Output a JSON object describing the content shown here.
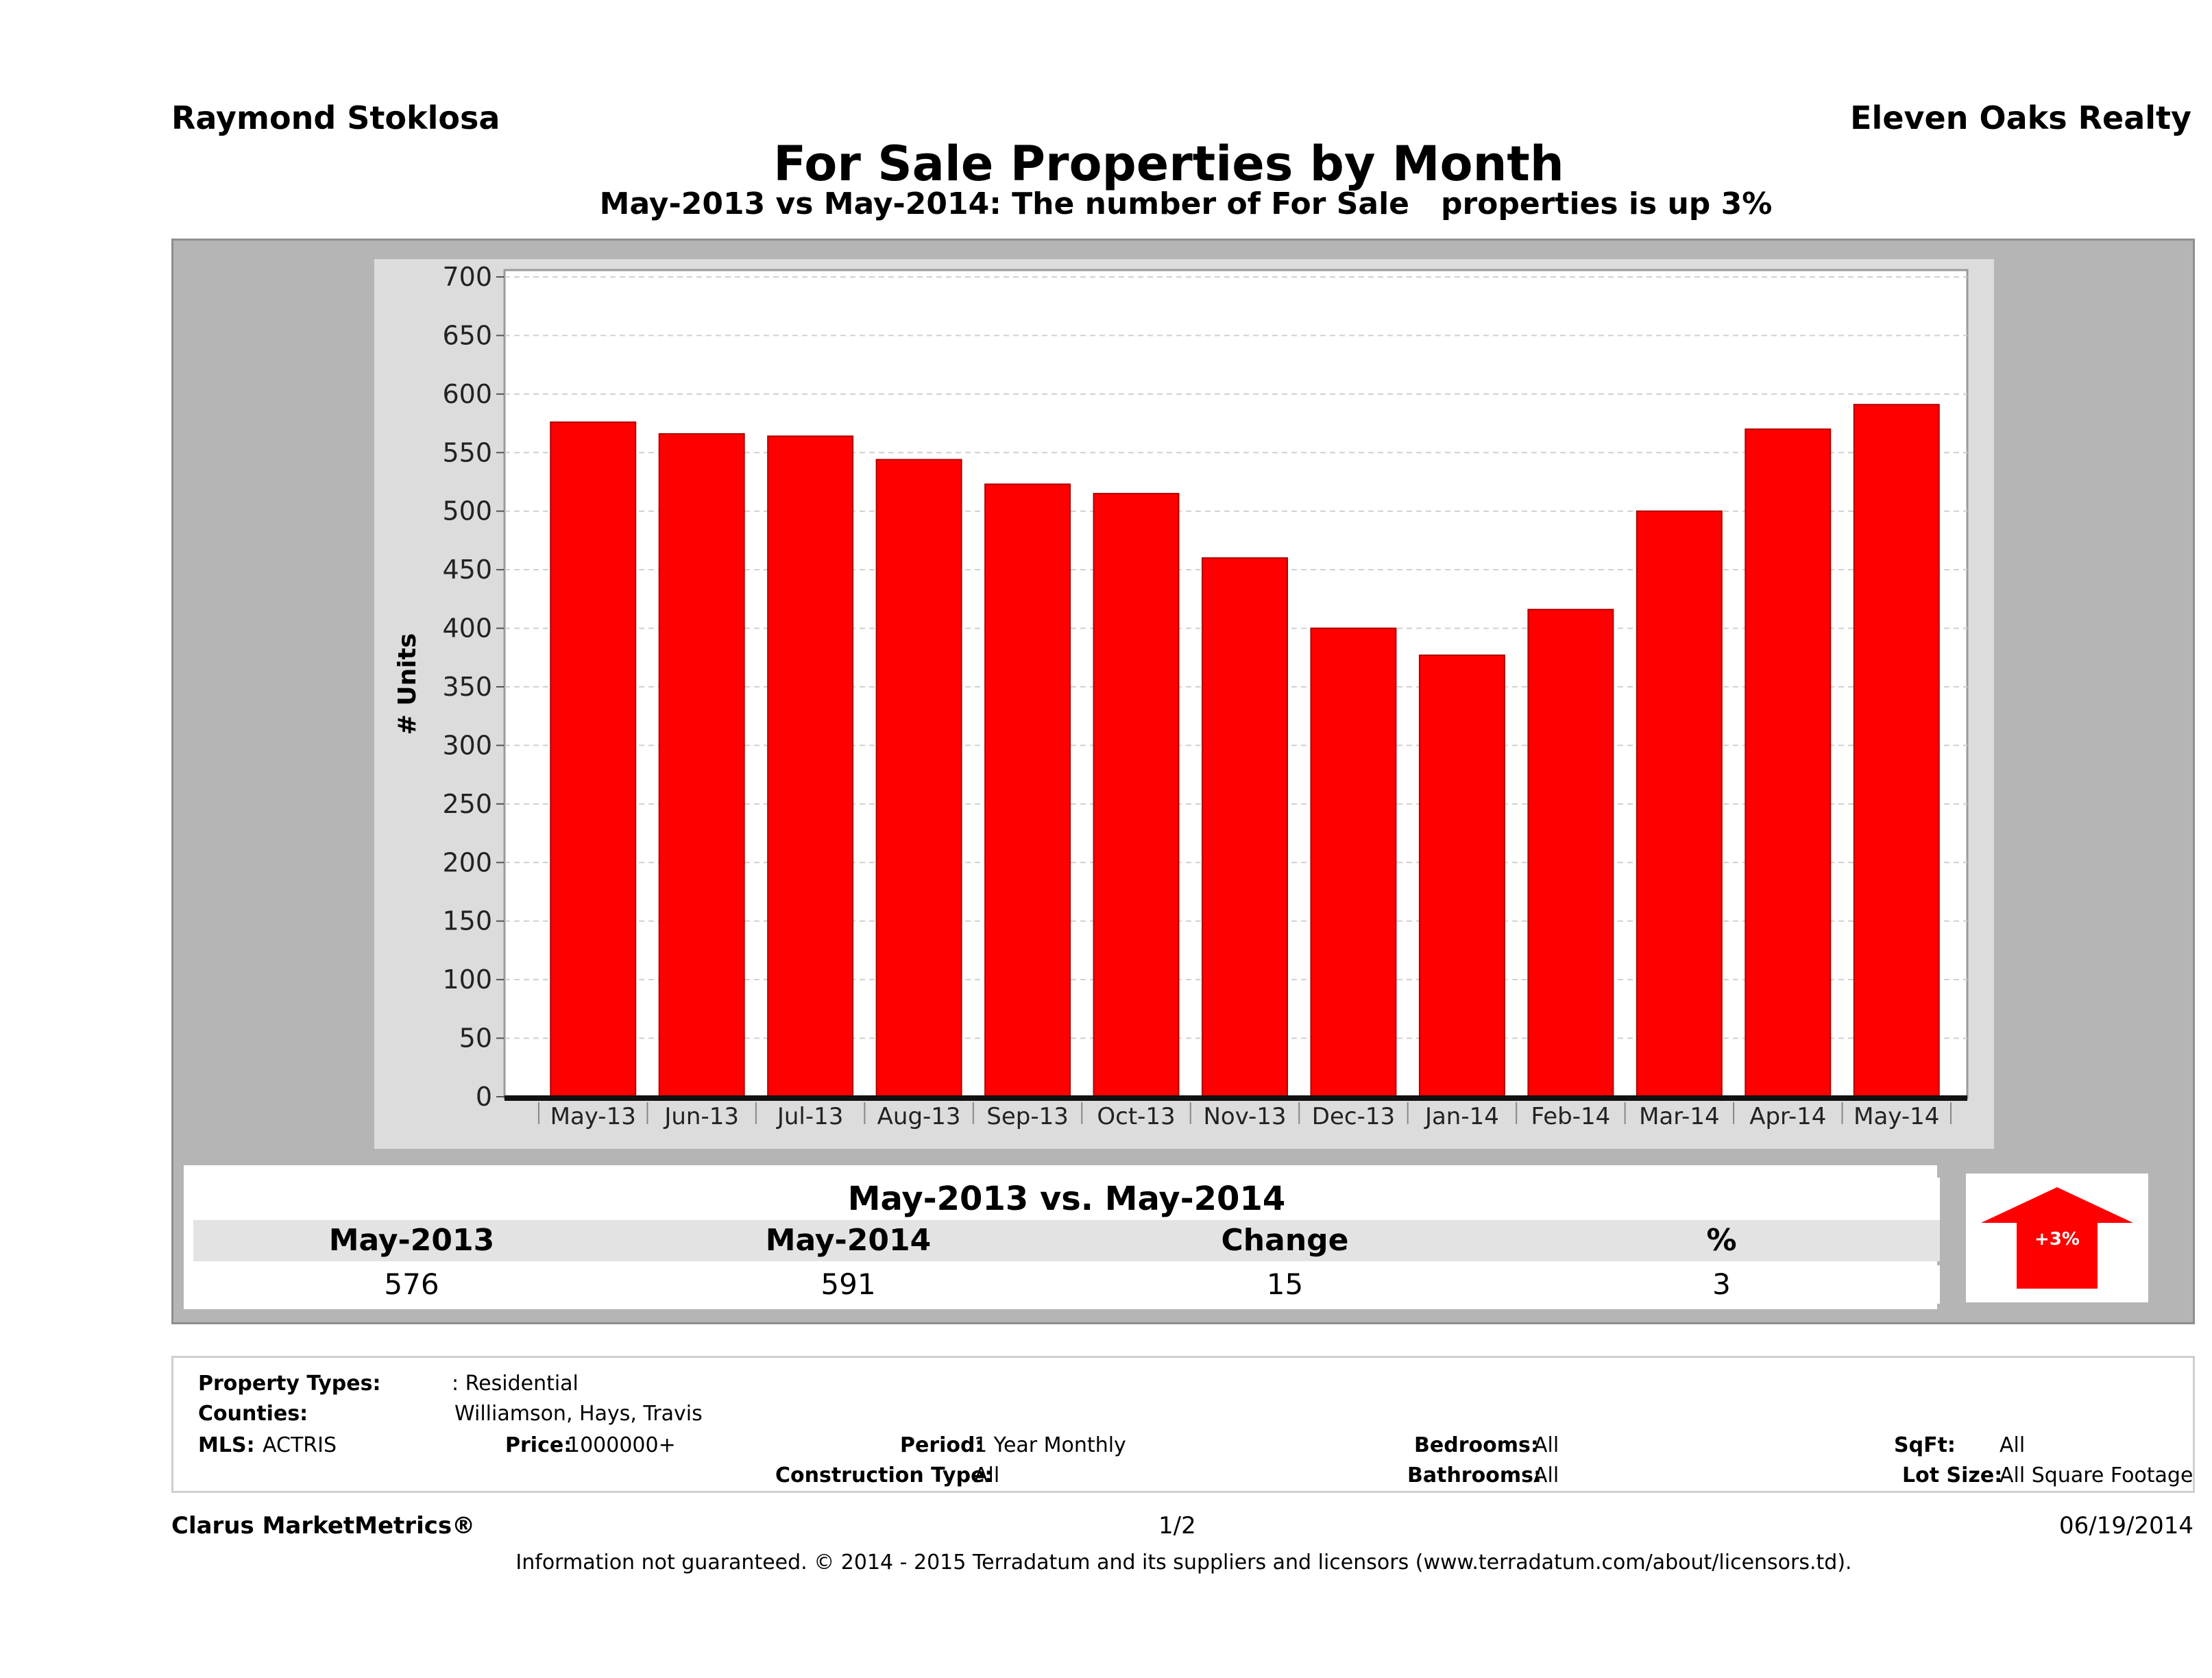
{
  "header": {
    "agent": "Raymond Stoklosa",
    "brokerage": "Eleven Oaks Realty",
    "title": "For Sale Properties by Month",
    "subtitle": "May-2013 vs May-2014: The number of For Sale   properties is up 3%"
  },
  "chart_data": {
    "type": "bar",
    "ylabel": "# Units",
    "xlabel": "",
    "ylim": [
      0,
      700
    ],
    "yticks": [
      0,
      50,
      100,
      150,
      200,
      250,
      300,
      350,
      400,
      450,
      500,
      550,
      600,
      650,
      700
    ],
    "grid": true,
    "categories": [
      "May-13",
      "Jun-13",
      "Jul-13",
      "Aug-13",
      "Sep-13",
      "Oct-13",
      "Nov-13",
      "Dec-13",
      "Jan-14",
      "Feb-14",
      "Mar-14",
      "Apr-14",
      "May-14"
    ],
    "values": [
      576,
      566,
      564,
      544,
      523,
      515,
      460,
      400,
      377,
      416,
      500,
      570,
      591
    ],
    "bar_color": "#ff0000"
  },
  "summary": {
    "title": "May-2013 vs. May-2014",
    "headers": [
      "May-2013",
      "May-2014",
      "Change",
      "%"
    ],
    "values": [
      "576",
      "591",
      "15",
      "3"
    ],
    "badge": "+3%",
    "badge_icon": "up-arrow-icon",
    "badge_color": "#ff0000"
  },
  "filters": {
    "property_types_label": "Property Types:",
    "property_types_value": ": Residential",
    "counties_label": "Counties:",
    "counties_value": "Williamson, Hays, Travis",
    "mls_label": "MLS:",
    "mls_value": "ACTRIS",
    "price_label": "Price:",
    "price_value": "1000000+",
    "period_label": "Period:",
    "period_value": "1 Year Monthly",
    "construction_label": "Construction Type:",
    "construction_value": "All",
    "bedrooms_label": "Bedrooms:",
    "bedrooms_value": "All",
    "bathrooms_label": "Bathrooms:",
    "bathrooms_value": "All",
    "sqft_label": "SqFt:",
    "sqft_value": "All",
    "lot_label": "Lot Size:",
    "lot_value": "All Square Footage"
  },
  "footer": {
    "brand": "Clarus MarketMetrics®",
    "page": "1/2",
    "date": "06/19/2014",
    "disclaimer": "Information not guaranteed. © 2014 - 2015 Terradatum and its suppliers and licensors (www.terradatum.com/about/licensors.td)."
  }
}
